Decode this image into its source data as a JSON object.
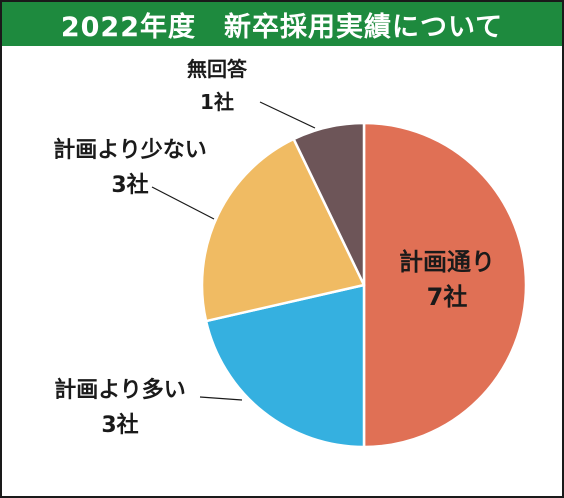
{
  "title": "2022年度　新卒採用実績について",
  "chart_data": {
    "type": "pie",
    "unit": "社",
    "slices": [
      {
        "name": "計画通り",
        "value": 7,
        "value_label": "7社",
        "color": "#e07055"
      },
      {
        "name": "計画より多い",
        "value": 3,
        "value_label": "3社",
        "color": "#35b0e0"
      },
      {
        "name": "計画より少ない",
        "value": 3,
        "value_label": "3社",
        "color": "#f0bb63"
      },
      {
        "name": "無回答",
        "value": 1,
        "value_label": "1社",
        "color": "#6d5558"
      }
    ]
  }
}
